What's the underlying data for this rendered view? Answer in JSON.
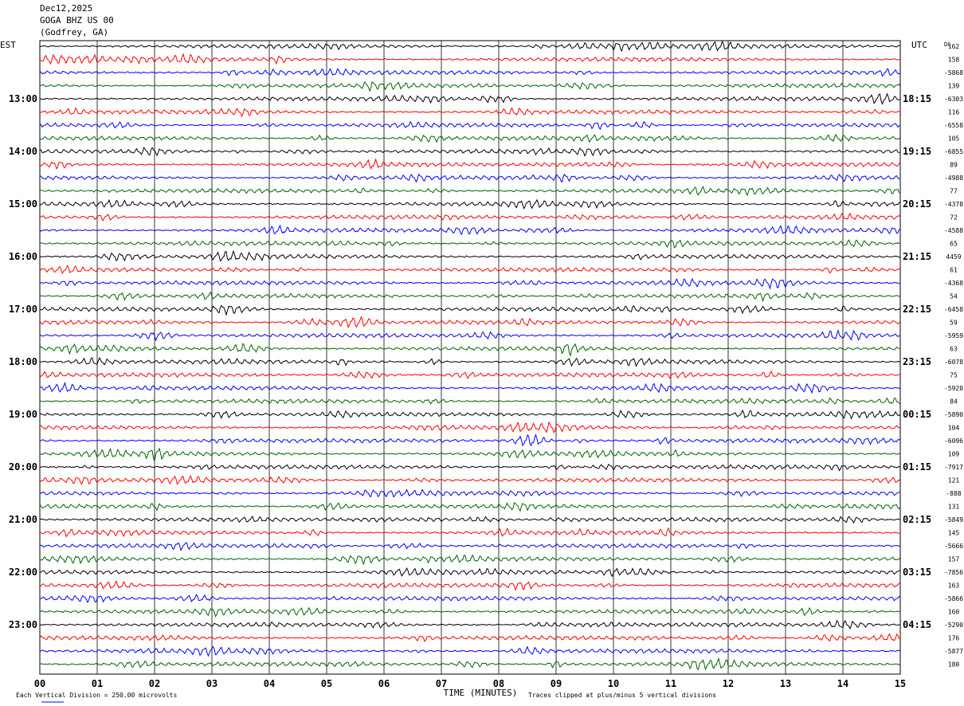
{
  "header": {
    "date": "Dec12,2025",
    "station": "GOGA BHZ US 00",
    "location": "(Godfrey, GA)"
  },
  "axes": {
    "left_tz": "EST",
    "right_tz": "UTC",
    "dc_label": "DC",
    "x_title": "TIME (MINUTES)",
    "x_ticks": [
      "00",
      "01",
      "02",
      "03",
      "04",
      "05",
      "06",
      "07",
      "08",
      "09",
      "10",
      "11",
      "12",
      "13",
      "14",
      "15"
    ],
    "left_hours": [
      "13:00",
      "14:00",
      "15:00",
      "16:00",
      "17:00",
      "18:00",
      "19:00",
      "20:00",
      "21:00",
      "22:00",
      "23:00"
    ],
    "right_hours": [
      "18:15",
      "19:15",
      "20:15",
      "21:15",
      "22:15",
      "23:15",
      "00:15",
      "01:15",
      "02:15",
      "03:15",
      "04:15"
    ]
  },
  "footer": {
    "scale": "Each Vertical Division =  250.00 microvolts",
    "clip": "Traces clipped at plus/minus 5 vertical divisions"
  },
  "colors": {
    "traces": [
      "#000000",
      "#ff0000",
      "#0000ff",
      "#006400"
    ],
    "grid": "#000000"
  },
  "chart_data": {
    "type": "line",
    "title": "GOGA BHZ US 00",
    "xlabel": "TIME (MINUTES)",
    "xlim": [
      0,
      15
    ],
    "traces_per_hour": 4,
    "rows_before_first_hour": 4,
    "dc_offsets": [
      "162",
      "158",
      "-5868",
      "139",
      "-6303",
      "116",
      "-6558",
      "105",
      "-6855",
      "89",
      "-4988",
      "77",
      "-4378",
      "72",
      "-4588",
      "65",
      "4459",
      "61",
      "-4368",
      "54",
      "-6458",
      "59",
      "-5959",
      "63",
      "-6078",
      "75",
      "-5920",
      "84",
      "-5890",
      "104",
      "-6096",
      "109",
      "-7917",
      "121",
      "-888",
      "131",
      "-5849",
      "145",
      "-5666",
      "157",
      "-7856",
      "163",
      "-5866",
      "160",
      "-5290",
      "176",
      "-5877",
      "180"
    ]
  }
}
